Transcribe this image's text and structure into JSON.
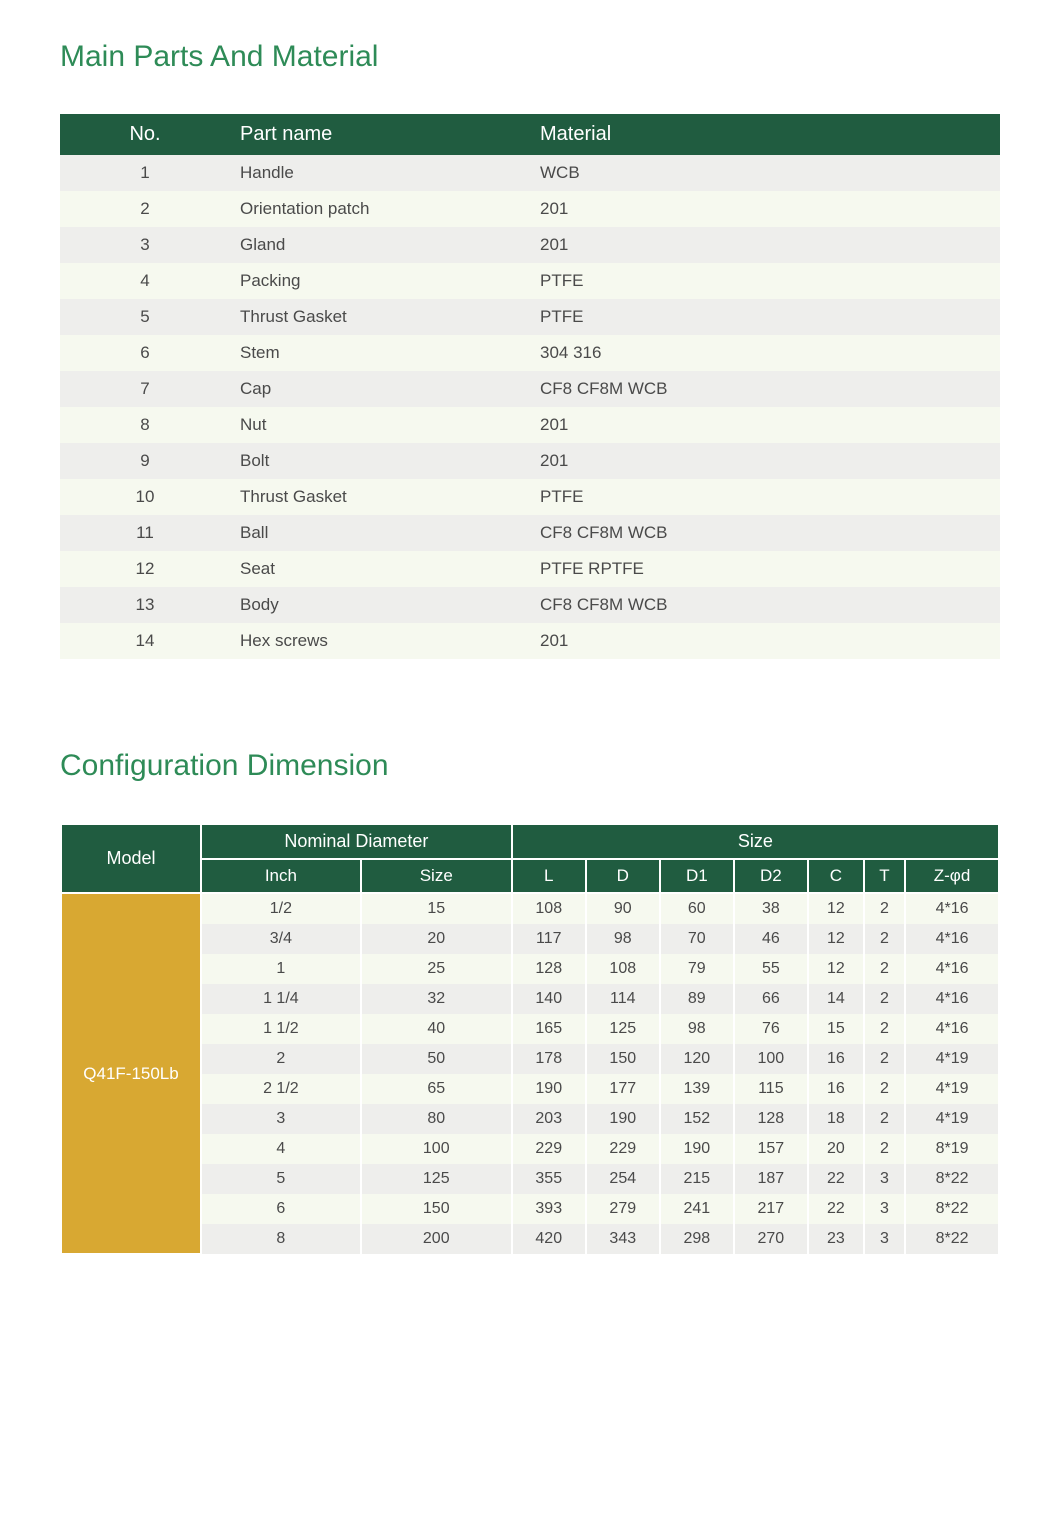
{
  "colors": {
    "heading": "#2e8b57",
    "header_bg": "#205c40",
    "header_fg": "#ffffff",
    "row_odd": "#eeeeec",
    "row_even": "#f6f9ef",
    "model_bg": "#d8a832",
    "text": "#4a4a4a"
  },
  "parts_section": {
    "title": "Main Parts And Material",
    "columns": [
      "No.",
      "Part name",
      "Material"
    ],
    "rows": [
      {
        "no": "1",
        "name": "Handle",
        "material": "WCB"
      },
      {
        "no": "2",
        "name": "Orientation patch",
        "material": "201"
      },
      {
        "no": "3",
        "name": "Gland",
        "material": "201"
      },
      {
        "no": "4",
        "name": "Packing",
        "material": "PTFE"
      },
      {
        "no": "5",
        "name": "Thrust Gasket",
        "material": "PTFE"
      },
      {
        "no": "6",
        "name": "Stem",
        "material": "304 316"
      },
      {
        "no": "7",
        "name": "Cap",
        "material": "CF8 CF8M WCB"
      },
      {
        "no": "8",
        "name": "Nut",
        "material": "201"
      },
      {
        "no": "9",
        "name": "Bolt",
        "material": "201"
      },
      {
        "no": "10",
        "name": "Thrust Gasket",
        "material": "PTFE"
      },
      {
        "no": "11",
        "name": "Ball",
        "material": "CF8 CF8M WCB"
      },
      {
        "no": "12",
        "name": "Seat",
        "material": "PTFE RPTFE"
      },
      {
        "no": "13",
        "name": "Body",
        "material": "CF8 CF8M WCB"
      },
      {
        "no": "14",
        "name": "Hex screws",
        "material": "201"
      }
    ]
  },
  "config_section": {
    "title": "Configuration Dimension",
    "header": {
      "model": "Model",
      "nominal_diameter": "Nominal Diameter",
      "size": "Size",
      "sub_nd": [
        "Inch",
        "Size"
      ],
      "sub_size": [
        "L",
        "D",
        "D1",
        "D2",
        "C",
        "T",
        "Z-φd"
      ]
    },
    "model": "Q41F-150Lb",
    "rows": [
      {
        "inch": "1/2",
        "sz": "15",
        "L": "108",
        "D": "90",
        "D1": "60",
        "D2": "38",
        "C": "12",
        "T": "2",
        "Z": "4*16"
      },
      {
        "inch": "3/4",
        "sz": "20",
        "L": "117",
        "D": "98",
        "D1": "70",
        "D2": "46",
        "C": "12",
        "T": "2",
        "Z": "4*16"
      },
      {
        "inch": "1",
        "sz": "25",
        "L": "128",
        "D": "108",
        "D1": "79",
        "D2": "55",
        "C": "12",
        "T": "2",
        "Z": "4*16"
      },
      {
        "inch": "1 1/4",
        "sz": "32",
        "L": "140",
        "D": "114",
        "D1": "89",
        "D2": "66",
        "C": "14",
        "T": "2",
        "Z": "4*16"
      },
      {
        "inch": "1 1/2",
        "sz": "40",
        "L": "165",
        "D": "125",
        "D1": "98",
        "D2": "76",
        "C": "15",
        "T": "2",
        "Z": "4*16"
      },
      {
        "inch": "2",
        "sz": "50",
        "L": "178",
        "D": "150",
        "D1": "120",
        "D2": "100",
        "C": "16",
        "T": "2",
        "Z": "4*19"
      },
      {
        "inch": "2 1/2",
        "sz": "65",
        "L": "190",
        "D": "177",
        "D1": "139",
        "D2": "115",
        "C": "16",
        "T": "2",
        "Z": "4*19"
      },
      {
        "inch": "3",
        "sz": "80",
        "L": "203",
        "D": "190",
        "D1": "152",
        "D2": "128",
        "C": "18",
        "T": "2",
        "Z": "4*19"
      },
      {
        "inch": "4",
        "sz": "100",
        "L": "229",
        "D": "229",
        "D1": "190",
        "D2": "157",
        "C": "20",
        "T": "2",
        "Z": "8*19"
      },
      {
        "inch": "5",
        "sz": "125",
        "L": "355",
        "D": "254",
        "D1": "215",
        "D2": "187",
        "C": "22",
        "T": "3",
        "Z": "8*22"
      },
      {
        "inch": "6",
        "sz": "150",
        "L": "393",
        "D": "279",
        "D1": "241",
        "D2": "217",
        "C": "22",
        "T": "3",
        "Z": "8*22"
      },
      {
        "inch": "8",
        "sz": "200",
        "L": "420",
        "D": "343",
        "D1": "298",
        "D2": "270",
        "C": "23",
        "T": "3",
        "Z": "8*22"
      }
    ]
  }
}
